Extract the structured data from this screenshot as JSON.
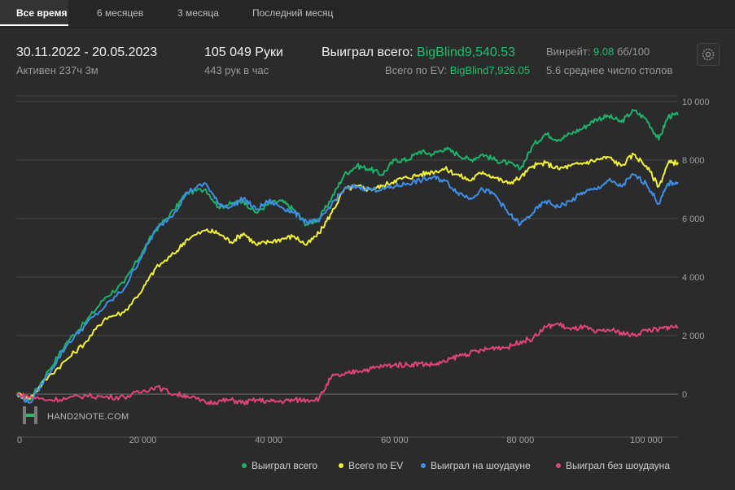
{
  "tabs": [
    {
      "label": "Все время",
      "active": true
    },
    {
      "label": "6 месяцев",
      "active": false
    },
    {
      "label": "3 месяца",
      "active": false
    },
    {
      "label": "Последний месяц",
      "active": false
    }
  ],
  "summary": {
    "date_range": "30.11.2022 - 20.05.2023",
    "active_time": "Активен 237ч 3м",
    "hands": "105 049 Руки",
    "hands_per_hour": "443 рук в час",
    "won_total_label": "Выиграл всего:",
    "won_total_value": "BigBlind9,540.53",
    "ev_label": "Всего по EV:",
    "ev_value": "BigBlind7,926.05",
    "winrate_label": "Винрейт:",
    "winrate_value": "9.08",
    "winrate_unit": "бб/100",
    "avg_tables": "5.6 среднее число столов"
  },
  "settings_icon": "gear-icon",
  "watermark": "HAND2NOTE.COM",
  "colors": {
    "accent_green": "#1fbf6e",
    "won_total": "#1db36a",
    "ev": "#f2f23a",
    "showdown": "#3d8fe8",
    "non_showdown": "#e0457a"
  },
  "chart_data": {
    "type": "line",
    "xlabel": "",
    "ylabel": "",
    "xlim": [
      0,
      105049
    ],
    "ylim": [
      -1000,
      10000
    ],
    "x_ticks": [
      "0",
      "20 000",
      "40 000",
      "60 000",
      "80 000",
      "100 000"
    ],
    "x_tick_values": [
      0,
      20000,
      40000,
      60000,
      80000,
      100000
    ],
    "y_ticks": [
      "0",
      "2 000",
      "4 000",
      "6 000",
      "8 000",
      "10 000"
    ],
    "y_tick_values": [
      0,
      2000,
      4000,
      6000,
      8000,
      10000
    ],
    "grid": true,
    "legend_position": "bottom-right",
    "series": [
      {
        "name": "Выиграл всего",
        "color": "#1db36a",
        "x": [
          0,
          2000,
          5000,
          8000,
          11000,
          14000,
          17000,
          20000,
          22000,
          25000,
          27000,
          30000,
          32000,
          34000,
          36000,
          38000,
          40000,
          42000,
          44000,
          46000,
          48000,
          50000,
          52000,
          54000,
          56000,
          58000,
          60000,
          62000,
          64000,
          66000,
          68000,
          70000,
          72000,
          74000,
          76000,
          78000,
          80000,
          82000,
          84000,
          86000,
          88000,
          90000,
          92000,
          94000,
          96000,
          98000,
          100000,
          102000,
          103500,
          105049
        ],
        "values": [
          0,
          -200,
          800,
          1800,
          2500,
          3300,
          3800,
          4900,
          5600,
          6300,
          6900,
          7000,
          6400,
          6500,
          6600,
          6200,
          6500,
          6600,
          6300,
          5800,
          6000,
          6700,
          7500,
          7800,
          7700,
          7500,
          8000,
          8000,
          8300,
          8200,
          8400,
          8200,
          8000,
          8200,
          8000,
          7900,
          7700,
          8500,
          8900,
          8700,
          8900,
          9100,
          9400,
          9500,
          9300,
          9700,
          9400,
          8700,
          9500,
          9540
        ]
      },
      {
        "name": "Всего по EV",
        "color": "#f2f23a",
        "x": [
          0,
          2000,
          5000,
          8000,
          11000,
          14000,
          17000,
          20000,
          22000,
          25000,
          27000,
          30000,
          32000,
          34000,
          36000,
          38000,
          40000,
          42000,
          44000,
          46000,
          48000,
          50000,
          52000,
          54000,
          56000,
          58000,
          60000,
          62000,
          64000,
          66000,
          68000,
          70000,
          72000,
          74000,
          76000,
          78000,
          80000,
          82000,
          84000,
          86000,
          88000,
          90000,
          92000,
          94000,
          96000,
          98000,
          100000,
          102000,
          103500,
          105049
        ],
        "values": [
          0,
          -150,
          600,
          1200,
          1800,
          2600,
          2800,
          3600,
          4300,
          4800,
          5300,
          5600,
          5500,
          5200,
          5500,
          5100,
          5200,
          5300,
          5400,
          5100,
          5500,
          6200,
          7000,
          7100,
          7000,
          7100,
          7300,
          7400,
          7500,
          7600,
          7700,
          7500,
          7300,
          7600,
          7400,
          7200,
          7400,
          7800,
          7900,
          7700,
          7800,
          7900,
          8000,
          8100,
          7800,
          8200,
          7800,
          7100,
          7900,
          7926
        ]
      },
      {
        "name": "Выиграл на шоудауне",
        "color": "#3d8fe8",
        "x": [
          0,
          2000,
          5000,
          8000,
          11000,
          14000,
          17000,
          20000,
          22000,
          25000,
          27000,
          30000,
          32000,
          34000,
          36000,
          38000,
          40000,
          42000,
          44000,
          46000,
          48000,
          50000,
          52000,
          54000,
          56000,
          58000,
          60000,
          62000,
          64000,
          66000,
          68000,
          70000,
          72000,
          74000,
          76000,
          78000,
          80000,
          82000,
          84000,
          86000,
          88000,
          90000,
          92000,
          94000,
          96000,
          98000,
          100000,
          102000,
          103500,
          105049
        ],
        "values": [
          0,
          -300,
          700,
          1700,
          2400,
          3000,
          3600,
          4800,
          5600,
          6200,
          6900,
          7200,
          6500,
          6400,
          6700,
          6300,
          6600,
          6400,
          6200,
          5900,
          5900,
          6500,
          7000,
          7100,
          7000,
          7000,
          7100,
          7200,
          7300,
          7400,
          7300,
          6900,
          6700,
          7000,
          6800,
          6200,
          5800,
          6200,
          6600,
          6400,
          6600,
          6900,
          7000,
          7300,
          7100,
          7500,
          7200,
          6500,
          7200,
          7250
        ]
      },
      {
        "name": "Выиграл без шоудауна",
        "color": "#e0457a",
        "x": [
          0,
          2000,
          5000,
          8000,
          11000,
          14000,
          17000,
          20000,
          22000,
          25000,
          27000,
          30000,
          32000,
          34000,
          36000,
          38000,
          40000,
          42000,
          44000,
          46000,
          48000,
          50000,
          52000,
          54000,
          56000,
          58000,
          60000,
          62000,
          64000,
          66000,
          68000,
          70000,
          72000,
          74000,
          76000,
          78000,
          80000,
          82000,
          84000,
          86000,
          88000,
          90000,
          92000,
          94000,
          96000,
          98000,
          100000,
          102000,
          103500,
          105049
        ],
        "values": [
          0,
          -100,
          -200,
          -150,
          -50,
          -100,
          -100,
          100,
          250,
          0,
          -50,
          -300,
          -250,
          -200,
          -300,
          -200,
          -250,
          -250,
          -200,
          -200,
          -150,
          600,
          650,
          800,
          850,
          950,
          1000,
          1000,
          1050,
          1000,
          1100,
          1300,
          1400,
          1500,
          1600,
          1600,
          1800,
          1900,
          2300,
          2400,
          2200,
          2300,
          2100,
          2200,
          2100,
          2000,
          2200,
          2200,
          2300,
          2300
        ]
      }
    ]
  }
}
